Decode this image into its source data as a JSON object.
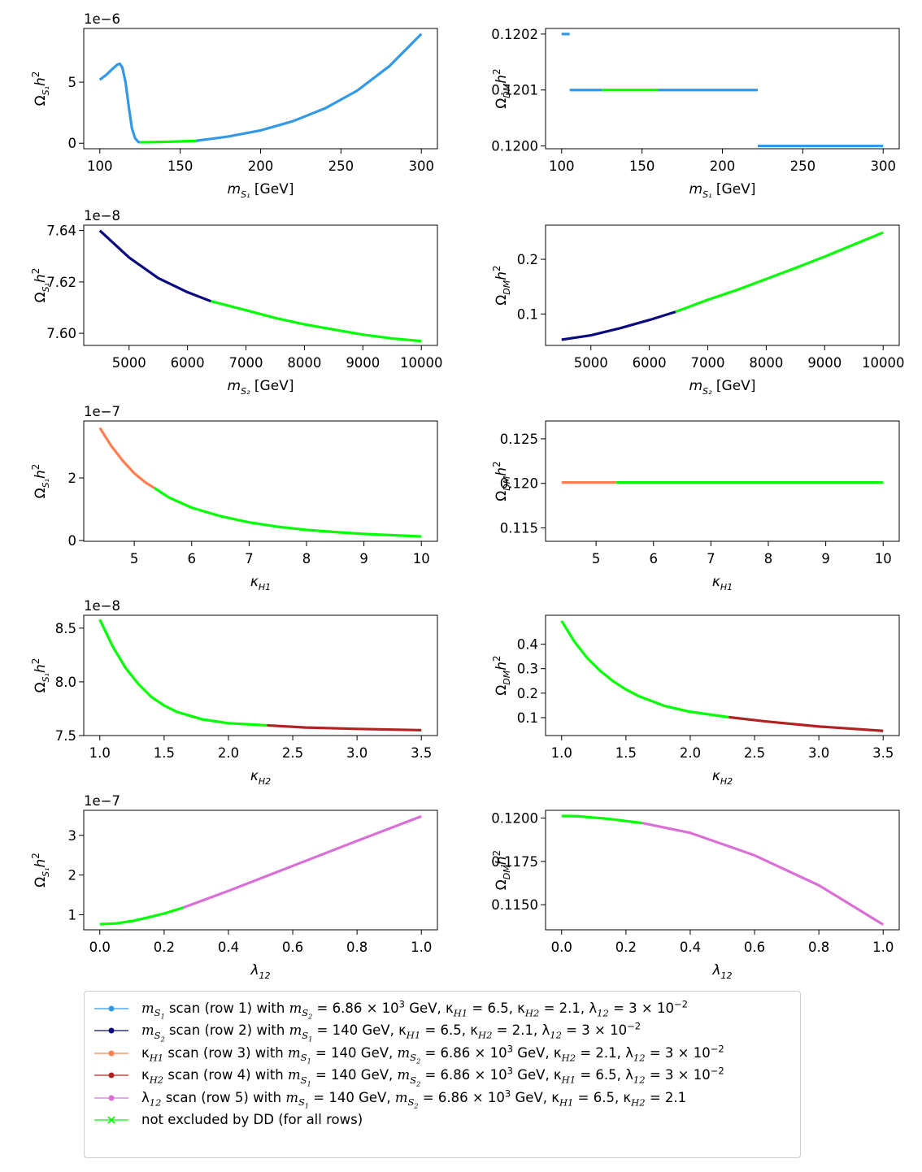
{
  "colors": {
    "ms1": "#3399e6",
    "ms2": "#0a0a80",
    "kh1": "#ff7f50",
    "kh2": "#b22222",
    "l12": "#da70d6",
    "dd": "#00ff00"
  },
  "chart_data": [
    {
      "type": "line",
      "panel": "row1-left",
      "xlabel": "m_S1 [GeV]",
      "ylabel": "Omega_S1 h^2",
      "offset_text": "1e−6",
      "xlim": [
        90,
        310
      ],
      "ylim": [
        -0.45,
        9.4
      ],
      "xticks": [
        100,
        150,
        200,
        250,
        300
      ],
      "xtick_labels": [
        "100",
        "150",
        "200",
        "250",
        "300"
      ],
      "yticks": [
        0,
        5
      ],
      "ytick_labels": [
        "0",
        "5"
      ],
      "series": [
        {
          "name": "excluded",
          "color_key": "ms1",
          "x": [
            100,
            104,
            108,
            111,
            112.5,
            114,
            116,
            118,
            120,
            122,
            124,
            125
          ],
          "y": [
            5.2,
            5.6,
            6.1,
            6.45,
            6.5,
            6.2,
            5.0,
            3.0,
            1.2,
            0.4,
            0.1,
            0.08
          ]
        },
        {
          "name": "allowed",
          "color_key": "dd",
          "x": [
            125,
            135,
            145,
            160
          ],
          "y": [
            0.08,
            0.1,
            0.13,
            0.2
          ]
        },
        {
          "name": "excluded",
          "color_key": "ms1",
          "x": [
            160,
            180,
            200,
            220,
            240,
            260,
            280,
            300
          ],
          "y": [
            0.2,
            0.55,
            1.05,
            1.8,
            2.85,
            4.3,
            6.3,
            8.95
          ]
        }
      ]
    },
    {
      "type": "line",
      "panel": "row1-right",
      "xlabel": "m_S1 [GeV]",
      "ylabel": "Omega_DM h^2",
      "offset_text": "",
      "xlim": [
        90,
        310
      ],
      "ylim": [
        0.119995,
        0.12021
      ],
      "xticks": [
        100,
        150,
        200,
        250,
        300
      ],
      "xtick_labels": [
        "100",
        "150",
        "200",
        "250",
        "300"
      ],
      "yticks": [
        0.12,
        0.1201,
        0.1202
      ],
      "ytick_labels": [
        "0.1200",
        "0.1201",
        "0.1202"
      ],
      "series": [
        {
          "name": "excluded",
          "color_key": "ms1",
          "x": [
            100,
            105
          ],
          "y": [
            0.1202,
            0.1202
          ]
        },
        {
          "name": "excluded",
          "color_key": "ms1",
          "x": [
            105,
            125
          ],
          "y": [
            0.1201,
            0.1201
          ]
        },
        {
          "name": "allowed",
          "color_key": "dd",
          "x": [
            125,
            160
          ],
          "y": [
            0.1201,
            0.1201
          ]
        },
        {
          "name": "excluded",
          "color_key": "ms1",
          "x": [
            160,
            222
          ],
          "y": [
            0.1201,
            0.1201
          ]
        },
        {
          "name": "excluded",
          "color_key": "ms1",
          "x": [
            222,
            300
          ],
          "y": [
            0.12,
            0.12
          ]
        }
      ]
    },
    {
      "type": "line",
      "panel": "row2-left",
      "xlabel": "m_S2 [GeV]",
      "ylabel": "Omega_S1 h^2",
      "offset_text": "1e−8",
      "xlim": [
        4225,
        10275
      ],
      "ylim": [
        7.5953,
        7.6421
      ],
      "xticks": [
        5000,
        6000,
        7000,
        8000,
        9000,
        10000
      ],
      "xtick_labels": [
        "5000",
        "6000",
        "7000",
        "8000",
        "9000",
        "10000"
      ],
      "yticks": [
        7.6,
        7.62,
        7.64
      ],
      "ytick_labels": [
        "7.60",
        "7.62",
        "7.64"
      ],
      "series": [
        {
          "name": "excluded",
          "color_key": "ms2",
          "x": [
            4500,
            5000,
            5500,
            6000,
            6400
          ],
          "y": [
            7.64,
            7.6295,
            7.6215,
            7.616,
            7.6125
          ]
        },
        {
          "name": "allowed",
          "color_key": "dd",
          "x": [
            6400,
            7000,
            7500,
            8000,
            8500,
            9000,
            9500,
            10000
          ],
          "y": [
            7.6125,
            7.609,
            7.606,
            7.6035,
            7.6015,
            7.5995,
            7.598,
            7.597
          ]
        }
      ]
    },
    {
      "type": "line",
      "panel": "row2-right",
      "xlabel": "m_S2 [GeV]",
      "ylabel": "Omega_DM h^2",
      "offset_text": "",
      "xlim": [
        4225,
        10275
      ],
      "ylim": [
        0.0425,
        0.2625
      ],
      "xticks": [
        5000,
        6000,
        7000,
        8000,
        9000,
        10000
      ],
      "xtick_labels": [
        "5000",
        "6000",
        "7000",
        "8000",
        "9000",
        "10000"
      ],
      "yticks": [
        0.1,
        0.2
      ],
      "ytick_labels": [
        "0.1",
        "0.2"
      ],
      "series": [
        {
          "name": "excluded",
          "color_key": "ms2",
          "x": [
            4500,
            5000,
            5500,
            6000,
            6450
          ],
          "y": [
            0.053,
            0.061,
            0.074,
            0.089,
            0.104
          ]
        },
        {
          "name": "allowed",
          "color_key": "dd",
          "x": [
            6450,
            7000,
            7500,
            8000,
            8500,
            9000,
            9500,
            10000
          ],
          "y": [
            0.104,
            0.126,
            0.144,
            0.164,
            0.184,
            0.205,
            0.227,
            0.249
          ]
        }
      ]
    },
    {
      "type": "line",
      "panel": "row3-left",
      "xlabel": "kappa_H1",
      "ylabel": "Omega_S1 h^2",
      "offset_text": "1e−7",
      "xlim": [
        4.12,
        10.28
      ],
      "ylim": [
        -0.025,
        3.82
      ],
      "xticks": [
        5,
        6,
        7,
        8,
        9,
        10
      ],
      "xtick_labels": [
        "5",
        "6",
        "7",
        "8",
        "9",
        "10"
      ],
      "yticks": [
        0,
        2
      ],
      "ytick_labels": [
        "0",
        "2"
      ],
      "series": [
        {
          "name": "excluded",
          "color_key": "kh1",
          "x": [
            4.4,
            4.6,
            4.8,
            5.0,
            5.2,
            5.35
          ],
          "y": [
            3.6,
            3.02,
            2.55,
            2.15,
            1.85,
            1.68
          ]
        },
        {
          "name": "allowed",
          "color_key": "dd",
          "x": [
            5.35,
            5.6,
            6.0,
            6.5,
            7.0,
            7.5,
            8.0,
            8.5,
            9.0,
            9.5,
            10.0
          ],
          "y": [
            1.68,
            1.38,
            1.05,
            0.78,
            0.58,
            0.44,
            0.34,
            0.27,
            0.21,
            0.17,
            0.13
          ]
        }
      ]
    },
    {
      "type": "line",
      "panel": "row3-right",
      "xlabel": "kappa_H1",
      "ylabel": "Omega_DM h^2",
      "offset_text": "",
      "xlim": [
        4.12,
        10.28
      ],
      "ylim": [
        0.1135,
        0.127
      ],
      "xticks": [
        5,
        6,
        7,
        8,
        9,
        10
      ],
      "xtick_labels": [
        "5",
        "6",
        "7",
        "8",
        "9",
        "10"
      ],
      "yticks": [
        0.115,
        0.12,
        0.125
      ],
      "ytick_labels": [
        "0.115",
        "0.120",
        "0.125"
      ],
      "series": [
        {
          "name": "excluded",
          "color_key": "kh1",
          "x": [
            4.4,
            5.35
          ],
          "y": [
            0.1201,
            0.1201
          ]
        },
        {
          "name": "allowed",
          "color_key": "dd",
          "x": [
            5.35,
            10.0
          ],
          "y": [
            0.1201,
            0.1201
          ]
        }
      ]
    },
    {
      "type": "line",
      "panel": "row4-left",
      "xlabel": "kappa_H2",
      "ylabel": "Omega_S1 h^2",
      "offset_text": "1e−8",
      "xlim": [
        0.875,
        3.625
      ],
      "ylim": [
        7.5,
        8.62
      ],
      "xticks": [
        1.0,
        1.5,
        2.0,
        2.5,
        3.0,
        3.5
      ],
      "xtick_labels": [
        "1.0",
        "1.5",
        "2.0",
        "2.5",
        "3.0",
        "3.5"
      ],
      "yticks": [
        7.5,
        8.0,
        8.5
      ],
      "ytick_labels": [
        "7.5",
        "8.0",
        "8.5"
      ],
      "series": [
        {
          "name": "allowed",
          "color_key": "dd",
          "x": [
            1.0,
            1.1,
            1.2,
            1.3,
            1.4,
            1.5,
            1.6,
            1.8,
            2.0,
            2.3
          ],
          "y": [
            8.58,
            8.33,
            8.13,
            7.98,
            7.86,
            7.78,
            7.72,
            7.65,
            7.615,
            7.595
          ]
        },
        {
          "name": "excluded",
          "color_key": "kh2",
          "x": [
            2.3,
            2.6,
            3.0,
            3.5
          ],
          "y": [
            7.595,
            7.575,
            7.562,
            7.55
          ]
        }
      ]
    },
    {
      "type": "line",
      "panel": "row4-right",
      "xlabel": "kappa_H2",
      "ylabel": "Omega_DM h^2",
      "offset_text": "",
      "xlim": [
        0.875,
        3.625
      ],
      "ylim": [
        0.027,
        0.518
      ],
      "xticks": [
        1.0,
        1.5,
        2.0,
        2.5,
        3.0,
        3.5
      ],
      "xtick_labels": [
        "1.0",
        "1.5",
        "2.0",
        "2.5",
        "3.0",
        "3.5"
      ],
      "yticks": [
        0.1,
        0.2,
        0.3,
        0.4
      ],
      "ytick_labels": [
        "0.1",
        "0.2",
        "0.3",
        "0.4"
      ],
      "series": [
        {
          "name": "allowed",
          "color_key": "dd",
          "x": [
            1.0,
            1.1,
            1.2,
            1.3,
            1.4,
            1.5,
            1.6,
            1.8,
            2.0,
            2.3
          ],
          "y": [
            0.495,
            0.41,
            0.343,
            0.291,
            0.249,
            0.215,
            0.188,
            0.148,
            0.124,
            0.102
          ]
        },
        {
          "name": "excluded",
          "color_key": "kh2",
          "x": [
            2.3,
            2.6,
            3.0,
            3.5
          ],
          "y": [
            0.102,
            0.084,
            0.064,
            0.046
          ]
        }
      ]
    },
    {
      "type": "line",
      "panel": "row5-left",
      "xlabel": "lambda_12",
      "ylabel": "Omega_S1 h^2",
      "offset_text": "1e−7",
      "xlim": [
        -0.05,
        1.05
      ],
      "ylim": [
        0.62,
        3.63
      ],
      "xticks": [
        0.0,
        0.2,
        0.4,
        0.6,
        0.8,
        1.0
      ],
      "xtick_labels": [
        "0.0",
        "0.2",
        "0.4",
        "0.6",
        "0.8",
        "1.0"
      ],
      "yticks": [
        1,
        2,
        3
      ],
      "ytick_labels": [
        "1",
        "2",
        "3"
      ],
      "series": [
        {
          "name": "allowed",
          "color_key": "dd",
          "x": [
            0.0,
            0.05,
            0.1,
            0.15,
            0.2,
            0.26
          ],
          "y": [
            0.76,
            0.78,
            0.84,
            0.93,
            1.03,
            1.18
          ]
        },
        {
          "name": "excluded",
          "color_key": "l12",
          "x": [
            0.26,
            0.4,
            0.6,
            0.8,
            1.0
          ],
          "y": [
            1.18,
            1.6,
            2.23,
            2.86,
            3.48
          ]
        }
      ]
    },
    {
      "type": "line",
      "panel": "row5-right",
      "xlabel": "lambda_12",
      "ylabel": "Omega_DM h^2",
      "offset_text": "",
      "xlim": [
        -0.05,
        1.05
      ],
      "ylim": [
        0.11355,
        0.12045
      ],
      "xticks": [
        0.0,
        0.2,
        0.4,
        0.6,
        0.8,
        1.0
      ],
      "xtick_labels": [
        "0.0",
        "0.2",
        "0.4",
        "0.6",
        "0.8",
        "1.0"
      ],
      "yticks": [
        0.115,
        0.1175,
        0.12
      ],
      "ytick_labels": [
        "0.1150",
        "0.1175",
        "0.1200"
      ],
      "series": [
        {
          "name": "allowed",
          "color_key": "dd",
          "x": [
            0.0,
            0.05,
            0.1,
            0.15,
            0.2,
            0.25
          ],
          "y": [
            0.12012,
            0.12011,
            0.12003,
            0.11995,
            0.11983,
            0.11972
          ]
        },
        {
          "name": "excluded",
          "color_key": "l12",
          "x": [
            0.25,
            0.4,
            0.6,
            0.8,
            1.0
          ],
          "y": [
            0.11972,
            0.11915,
            0.11785,
            0.11612,
            0.11385
          ]
        }
      ]
    }
  ],
  "legend": {
    "entries": [
      {
        "color_key": "ms1",
        "marker": "dot",
        "text": "m_S1 scan (row 1) with m_S2 = 6.86 × 10^3 GeV, κ_H1 = 6.5, κ_H2 = 2.1, λ_12 = 3 × 10^−2"
      },
      {
        "color_key": "ms2",
        "marker": "dot",
        "text": "m_S2 scan (row 2) with m_S1 = 140 GeV, κ_H1 = 6.5, κ_H2 = 2.1, λ_12 = 3 × 10^−2"
      },
      {
        "color_key": "kh1",
        "marker": "dot",
        "text": "κ_H1 scan (row 3) with m_S1 = 140 GeV, m_S2 = 6.86 × 10^3 GeV, κ_H2 = 2.1, λ_12 = 3 × 10^−2"
      },
      {
        "color_key": "kh2",
        "marker": "dot",
        "text": "κ_H2 scan (row 4) with m_S1 = 140 GeV, m_S2 = 6.86 × 10^3 GeV, κ_H1 = 6.5, λ_12 = 3 × 10^−2"
      },
      {
        "color_key": "l12",
        "marker": "dot",
        "text": "λ_12 scan (row 5) with m_S1 = 140 GeV, m_S2 = 6.86 × 10^3 GeV, κ_H1 = 6.5, κ_H2 = 2.1"
      },
      {
        "color_key": "dd",
        "marker": "x",
        "text": "not excluded by DD (for all rows)"
      }
    ]
  }
}
